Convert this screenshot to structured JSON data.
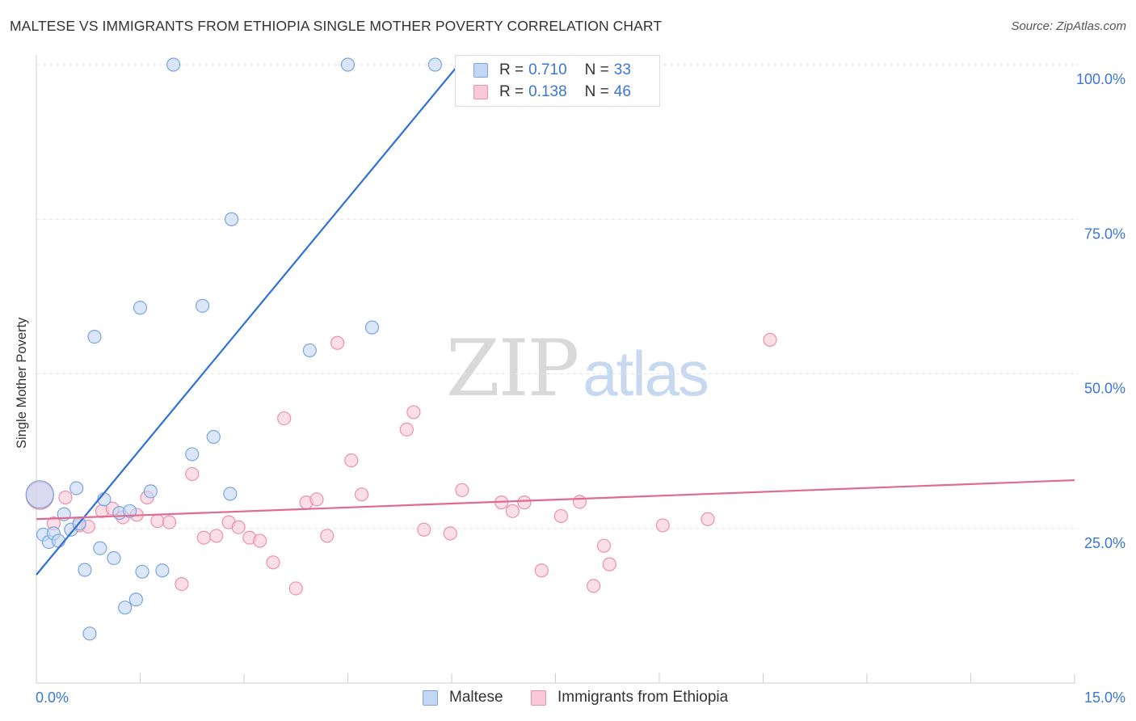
{
  "header": {
    "title": "MALTESE VS IMMIGRANTS FROM ETHIOPIA SINGLE MOTHER POVERTY CORRELATION CHART",
    "source": "Source: ZipAtlas.com"
  },
  "watermark": {
    "zip": "ZIP",
    "atlas": "atlas"
  },
  "legend": {
    "rows": [
      {
        "r_label": "R =",
        "r_value": "0.710",
        "n_label": "N =",
        "n_value": "33",
        "color": "#a9c6ef",
        "border": "#7aa5e0"
      },
      {
        "r_label": "R =",
        "r_value": "0.138",
        "n_label": "N =",
        "n_value": "46",
        "color": "#f7b8cb",
        "border": "#ee8fab"
      }
    ]
  },
  "chart_data": {
    "type": "scatter",
    "title": "MALTESE VS IMMIGRANTS FROM ETHIOPIA SINGLE MOTHER POVERTY CORRELATION CHART",
    "xlabel": "",
    "ylabel": "Single Mother Poverty",
    "xlim": [
      0,
      15
    ],
    "ylim": [
      0,
      100
    ],
    "x_tick_labels": [
      "0.0%",
      "15.0%"
    ],
    "y_tick_labels": [
      "25.0%",
      "50.0%",
      "75.0%",
      "100.0%"
    ],
    "y_ticks": [
      25,
      50,
      75,
      100
    ],
    "grid": true,
    "legend_position": "bottom",
    "series": [
      {
        "name": "Maltese",
        "color": "#7aa5e0",
        "fill": "#c3d7f5",
        "trend": {
          "x": [
            0,
            6.1
          ],
          "y": [
            17.5,
            100
          ],
          "color": "#3070d8"
        },
        "points": [
          {
            "x": 0.05,
            "y": 30.5,
            "big": true
          },
          {
            "x": 0.1,
            "y": 24.0
          },
          {
            "x": 0.18,
            "y": 22.8
          },
          {
            "x": 0.25,
            "y": 24.2
          },
          {
            "x": 0.32,
            "y": 23.0
          },
          {
            "x": 0.4,
            "y": 27.3
          },
          {
            "x": 0.5,
            "y": 24.8
          },
          {
            "x": 0.58,
            "y": 31.5
          },
          {
            "x": 0.62,
            "y": 25.8
          },
          {
            "x": 0.7,
            "y": 18.3
          },
          {
            "x": 0.77,
            "y": 8.0
          },
          {
            "x": 0.84,
            "y": 56.0
          },
          {
            "x": 0.92,
            "y": 21.8
          },
          {
            "x": 0.98,
            "y": 29.7
          },
          {
            "x": 1.12,
            "y": 20.2
          },
          {
            "x": 1.2,
            "y": 27.5
          },
          {
            "x": 1.28,
            "y": 12.2
          },
          {
            "x": 1.44,
            "y": 13.5
          },
          {
            "x": 1.5,
            "y": 60.7
          },
          {
            "x": 1.53,
            "y": 18.0
          },
          {
            "x": 1.65,
            "y": 31.0
          },
          {
            "x": 1.82,
            "y": 18.2
          },
          {
            "x": 1.98,
            "y": 100
          },
          {
            "x": 2.25,
            "y": 37.0
          },
          {
            "x": 2.4,
            "y": 61.0
          },
          {
            "x": 2.56,
            "y": 39.8
          },
          {
            "x": 2.8,
            "y": 30.6
          },
          {
            "x": 2.82,
            "y": 75.0
          },
          {
            "x": 3.95,
            "y": 53.8
          },
          {
            "x": 4.5,
            "y": 100
          },
          {
            "x": 4.85,
            "y": 57.5
          },
          {
            "x": 5.76,
            "y": 100
          },
          {
            "x": 1.35,
            "y": 27.8
          }
        ]
      },
      {
        "name": "Immigrants from Ethiopia",
        "color": "#ee8fab",
        "fill": "#f9c9d7",
        "trend": {
          "x": [
            0,
            15
          ],
          "y": [
            26.5,
            32.8
          ],
          "color": "#e06b92"
        },
        "points": [
          {
            "x": 0.05,
            "y": 30.3,
            "big": true
          },
          {
            "x": 0.25,
            "y": 25.8
          },
          {
            "x": 0.42,
            "y": 30.0
          },
          {
            "x": 0.62,
            "y": 25.5
          },
          {
            "x": 0.75,
            "y": 25.3
          },
          {
            "x": 0.95,
            "y": 27.8
          },
          {
            "x": 1.1,
            "y": 28.2
          },
          {
            "x": 1.25,
            "y": 26.8
          },
          {
            "x": 1.45,
            "y": 27.2
          },
          {
            "x": 1.6,
            "y": 30.0
          },
          {
            "x": 1.75,
            "y": 26.2
          },
          {
            "x": 1.92,
            "y": 26.0
          },
          {
            "x": 2.1,
            "y": 16.0
          },
          {
            "x": 2.25,
            "y": 33.8
          },
          {
            "x": 2.42,
            "y": 23.5
          },
          {
            "x": 2.6,
            "y": 23.8
          },
          {
            "x": 2.78,
            "y": 26.0
          },
          {
            "x": 2.92,
            "y": 25.2
          },
          {
            "x": 3.08,
            "y": 23.5
          },
          {
            "x": 3.23,
            "y": 23.0
          },
          {
            "x": 3.42,
            "y": 19.5
          },
          {
            "x": 3.58,
            "y": 42.8
          },
          {
            "x": 3.75,
            "y": 15.3
          },
          {
            "x": 3.9,
            "y": 29.2
          },
          {
            "x": 4.05,
            "y": 29.7
          },
          {
            "x": 4.2,
            "y": 23.8
          },
          {
            "x": 4.35,
            "y": 55.0
          },
          {
            "x": 4.55,
            "y": 36.0
          },
          {
            "x": 4.7,
            "y": 30.5
          },
          {
            "x": 5.35,
            "y": 41.0
          },
          {
            "x": 5.45,
            "y": 43.8
          },
          {
            "x": 5.6,
            "y": 24.8
          },
          {
            "x": 5.98,
            "y": 24.2
          },
          {
            "x": 6.15,
            "y": 31.2
          },
          {
            "x": 6.72,
            "y": 29.2
          },
          {
            "x": 6.88,
            "y": 27.8
          },
          {
            "x": 7.05,
            "y": 29.2
          },
          {
            "x": 7.3,
            "y": 18.2
          },
          {
            "x": 7.58,
            "y": 27.0
          },
          {
            "x": 7.85,
            "y": 29.3
          },
          {
            "x": 8.05,
            "y": 15.7
          },
          {
            "x": 8.2,
            "y": 22.2
          },
          {
            "x": 8.28,
            "y": 19.2
          },
          {
            "x": 9.05,
            "y": 25.5
          },
          {
            "x": 9.7,
            "y": 26.5
          },
          {
            "x": 10.6,
            "y": 55.5
          }
        ]
      }
    ]
  }
}
